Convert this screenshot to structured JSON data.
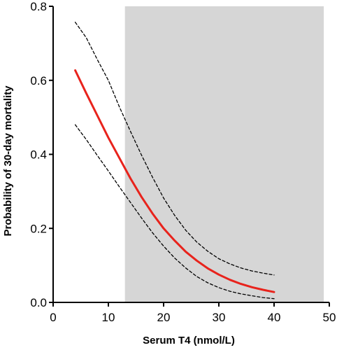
{
  "chart_data": {
    "type": "line",
    "title": "",
    "xlabel": "Serum T4 (nmol/L)",
    "ylabel": "Probability of 30-day mortality",
    "xlim": [
      0,
      50
    ],
    "ylim": [
      0,
      0.8
    ],
    "x_ticks": [
      0,
      10,
      20,
      30,
      40,
      50
    ],
    "y_ticks": [
      0.0,
      0.2,
      0.4,
      0.6,
      0.8
    ],
    "x_tick_labels": [
      "0",
      "10",
      "20",
      "30",
      "40",
      "50"
    ],
    "y_tick_labels": [
      "0.0",
      "0.2",
      "0.4",
      "0.6",
      "0.8"
    ],
    "grid": false,
    "legend": "none",
    "shaded_region": {
      "x_range": [
        13,
        49
      ],
      "y_range": [
        0,
        0.8
      ],
      "color": "#d6d6d6"
    },
    "x": [
      4,
      6,
      8,
      10,
      12,
      14,
      16,
      18,
      20,
      22,
      24,
      26,
      28,
      30,
      32,
      34,
      36,
      38,
      40
    ],
    "series": [
      {
        "role": "estimate",
        "color": "#e8231c",
        "style": "solid",
        "values": [
          0.627,
          0.565,
          0.505,
          0.445,
          0.39,
          0.335,
          0.285,
          0.24,
          0.2,
          0.167,
          0.137,
          0.113,
          0.092,
          0.075,
          0.061,
          0.05,
          0.041,
          0.034,
          0.028
        ]
      },
      {
        "role": "upper-ci",
        "color": "#000000",
        "style": "dashed",
        "values": [
          0.757,
          0.715,
          0.656,
          0.6,
          0.528,
          0.462,
          0.398,
          0.338,
          0.282,
          0.235,
          0.195,
          0.163,
          0.138,
          0.118,
          0.104,
          0.093,
          0.085,
          0.079,
          0.074
        ]
      },
      {
        "role": "lower-ci",
        "color": "#000000",
        "style": "dashed",
        "values": [
          0.48,
          0.44,
          0.397,
          0.355,
          0.312,
          0.27,
          0.228,
          0.188,
          0.152,
          0.12,
          0.093,
          0.07,
          0.053,
          0.04,
          0.03,
          0.023,
          0.018,
          0.013,
          0.01
        ]
      }
    ]
  }
}
